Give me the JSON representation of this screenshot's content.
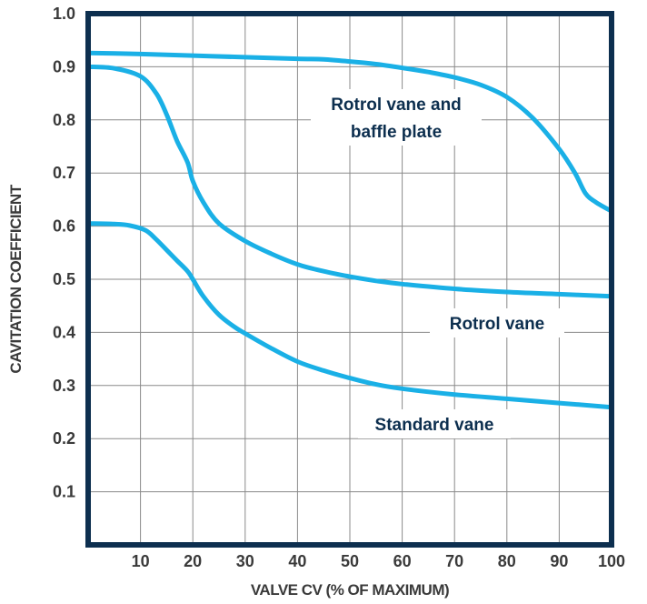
{
  "chart_data": {
    "type": "line",
    "title": "",
    "xlabel": "VALVE CV (% OF MAXIMUM)",
    "ylabel": "CAVITATION COEFFICIENT",
    "xlim": [
      0,
      100
    ],
    "ylim": [
      0,
      1.0
    ],
    "x_ticks": [
      "10",
      "20",
      "30",
      "40",
      "50",
      "60",
      "70",
      "80",
      "90",
      "100"
    ],
    "y_ticks": [
      "0.1",
      "0.2",
      "0.3",
      "0.4",
      "0.5",
      "0.6",
      "0.7",
      "0.8",
      "0.9",
      "1.0"
    ],
    "grid": true,
    "line_color": "#1ab0e6",
    "frame_color": "#0d2f4f",
    "series": [
      {
        "name": "Rotrol vane and baffle plate",
        "label_lines": [
          "Rotrol vane and",
          "baffle plate"
        ],
        "points": [
          [
            0,
            0.926
          ],
          [
            10,
            0.924
          ],
          [
            20,
            0.921
          ],
          [
            30,
            0.918
          ],
          [
            40,
            0.915
          ],
          [
            45,
            0.914
          ],
          [
            50,
            0.91
          ],
          [
            55,
            0.905
          ],
          [
            60,
            0.898
          ],
          [
            65,
            0.89
          ],
          [
            70,
            0.88
          ],
          [
            75,
            0.866
          ],
          [
            80,
            0.843
          ],
          [
            85,
            0.803
          ],
          [
            90,
            0.745
          ],
          [
            93,
            0.7
          ],
          [
            95,
            0.662
          ],
          [
            97,
            0.645
          ],
          [
            100,
            0.628
          ]
        ]
      },
      {
        "name": "Rotrol vane",
        "label_lines": [
          "Rotrol vane"
        ],
        "points": [
          [
            0,
            0.9
          ],
          [
            5,
            0.897
          ],
          [
            10,
            0.882
          ],
          [
            13,
            0.85
          ],
          [
            15,
            0.81
          ],
          [
            17,
            0.76
          ],
          [
            19,
            0.72
          ],
          [
            20,
            0.685
          ],
          [
            22,
            0.645
          ],
          [
            25,
            0.605
          ],
          [
            30,
            0.572
          ],
          [
            35,
            0.548
          ],
          [
            40,
            0.528
          ],
          [
            45,
            0.515
          ],
          [
            50,
            0.505
          ],
          [
            55,
            0.497
          ],
          [
            60,
            0.491
          ],
          [
            70,
            0.482
          ],
          [
            80,
            0.476
          ],
          [
            90,
            0.472
          ],
          [
            100,
            0.468
          ]
        ]
      },
      {
        "name": "Standard vane",
        "label_lines": [
          "Standard vane"
        ],
        "points": [
          [
            0,
            0.605
          ],
          [
            5,
            0.604
          ],
          [
            8,
            0.601
          ],
          [
            11,
            0.592
          ],
          [
            13,
            0.575
          ],
          [
            15,
            0.555
          ],
          [
            17,
            0.535
          ],
          [
            19,
            0.515
          ],
          [
            20,
            0.5
          ],
          [
            22,
            0.468
          ],
          [
            25,
            0.433
          ],
          [
            28,
            0.41
          ],
          [
            30,
            0.398
          ],
          [
            35,
            0.37
          ],
          [
            40,
            0.345
          ],
          [
            45,
            0.328
          ],
          [
            50,
            0.314
          ],
          [
            55,
            0.302
          ],
          [
            60,
            0.294
          ],
          [
            70,
            0.283
          ],
          [
            80,
            0.275
          ],
          [
            90,
            0.267
          ],
          [
            100,
            0.259
          ]
        ]
      }
    ]
  }
}
